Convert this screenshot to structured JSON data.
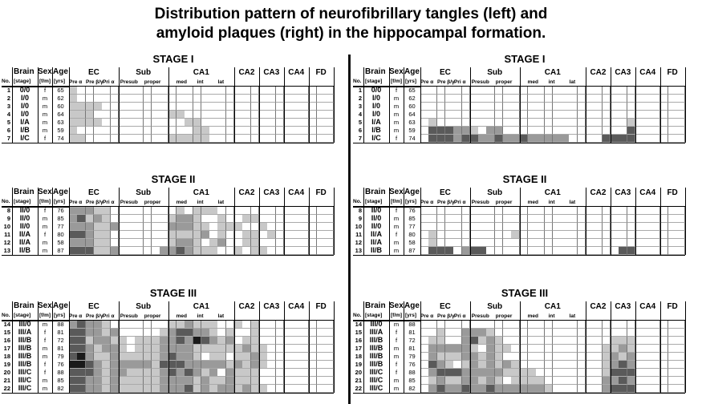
{
  "title": {
    "line1": "Distribution pattern of neurofibrillary tangles (left) and",
    "line2": "amyloid plaques (right) in the hippocampal formation."
  },
  "headers": {
    "no": "No.",
    "brain": "Brain",
    "brain_sub": "[stage]",
    "sex": "Sex",
    "sex_sub": "[f/m]",
    "age": "Age",
    "age_sub": "[yrs]",
    "regions": [
      "EC",
      "Sub",
      "CA1",
      "CA2",
      "CA3",
      "CA4",
      "FD"
    ],
    "ec_sub": [
      "Pre α",
      "Pre β/γ",
      "Pri α"
    ],
    "sub_sub": [
      "Presub",
      "proper"
    ],
    "ca1_sub": [
      "med",
      "int",
      "lat"
    ]
  },
  "stages": [
    {
      "label": "STAGE I",
      "rows": [
        {
          "no": "1",
          "brain": "0/0",
          "sex": "f",
          "age": "65"
        },
        {
          "no": "2",
          "brain": "I/0",
          "sex": "m",
          "age": "62"
        },
        {
          "no": "3",
          "brain": "I/0",
          "sex": "m",
          "age": "60"
        },
        {
          "no": "4",
          "brain": "I/0",
          "sex": "m",
          "age": "64"
        },
        {
          "no": "5",
          "brain": "I/A",
          "sex": "m",
          "age": "63"
        },
        {
          "no": "6",
          "brain": "I/B",
          "sex": "m",
          "age": "59"
        },
        {
          "no": "7",
          "brain": "I/C",
          "sex": "f",
          "age": "74"
        }
      ]
    },
    {
      "label": "STAGE II",
      "rows": [
        {
          "no": "8",
          "brain": "II/0",
          "sex": "f",
          "age": "76"
        },
        {
          "no": "9",
          "brain": "II/0",
          "sex": "m",
          "age": "85"
        },
        {
          "no": "10",
          "brain": "II/0",
          "sex": "m",
          "age": "77"
        },
        {
          "no": "11",
          "brain": "II/A",
          "sex": "f",
          "age": "80"
        },
        {
          "no": "12",
          "brain": "II/A",
          "sex": "m",
          "age": "58"
        },
        {
          "no": "13",
          "brain": "II/B",
          "sex": "m",
          "age": "87"
        }
      ]
    },
    {
      "label": "STAGE III",
      "rows": [
        {
          "no": "14",
          "brain": "III/0",
          "sex": "m",
          "age": "88"
        },
        {
          "no": "15",
          "brain": "III/A",
          "sex": "f",
          "age": "81"
        },
        {
          "no": "16",
          "brain": "III/B",
          "sex": "f",
          "age": "72"
        },
        {
          "no": "17",
          "brain": "III/B",
          "sex": "m",
          "age": "81"
        },
        {
          "no": "18",
          "brain": "III/B",
          "sex": "m",
          "age": "79"
        },
        {
          "no": "19",
          "brain": "III/B",
          "sex": "f",
          "age": "76"
        },
        {
          "no": "20",
          "brain": "III/C",
          "sex": "f",
          "age": "88"
        },
        {
          "no": "21",
          "brain": "III/C",
          "sex": "m",
          "age": "85"
        },
        {
          "no": "22",
          "brain": "III/C",
          "sex": "m",
          "age": "82"
        }
      ]
    }
  ],
  "shading_colors": [
    "#ffffff",
    "#c8c8c8",
    "#9a9a9a",
    "#5a5a5a",
    "#1a1a1a"
  ]
}
